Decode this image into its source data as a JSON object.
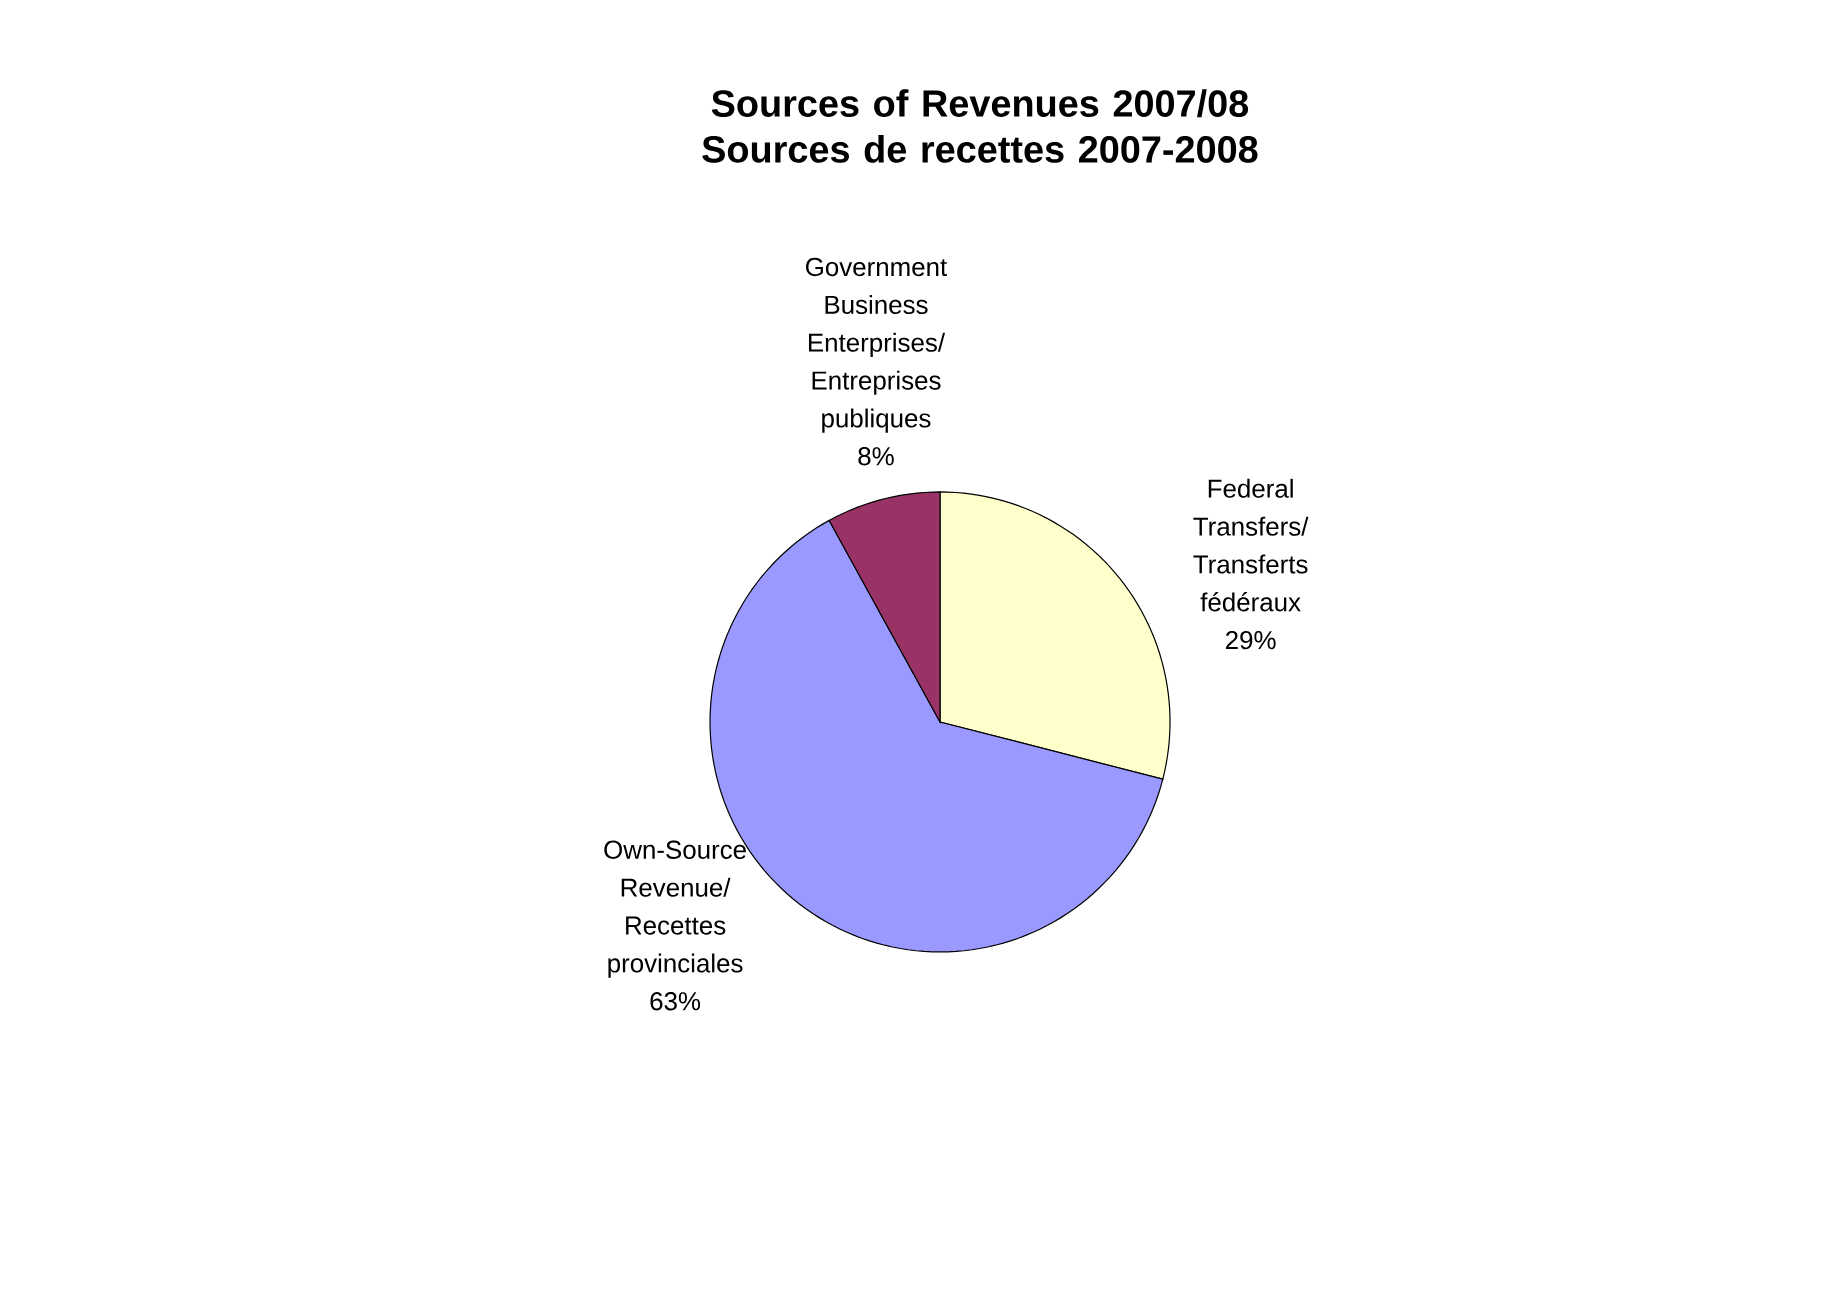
{
  "chart_data": {
    "type": "pie",
    "title": "Sources of Revenues 2007/08\nSources de recettes 2007-2008",
    "categories": [
      "Federal Transfers/ Transferts fédéraux",
      "Own-Source Revenue/ Recettes provinciales",
      "Government Business Enterprises/ Entreprises publiques"
    ],
    "values": [
      29,
      63,
      8
    ],
    "value_labels": [
      "29%",
      "63%",
      "8%"
    ],
    "colors": [
      "#ffffcc",
      "#9999ff",
      "#993366"
    ]
  }
}
